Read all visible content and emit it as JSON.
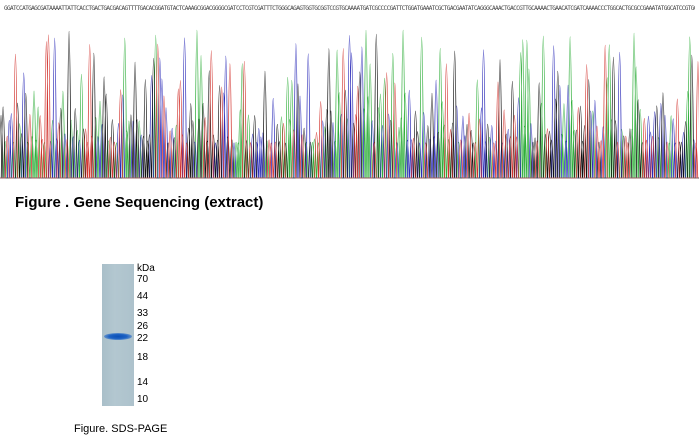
{
  "sequencing": {
    "sequence_text": "GGATCCATGAGCGATAAAATTATTCACCTGACTGACGACAGTTTTGACACGGATGTACTCAAAGCGGACGGGGCGATCCTCGTCGATTTCTGGGCAGAGTGGTGCGGTCCGTGCAAAATGATCGCCCCGATTCTGGATGAAATCGCTGACGAATATCAGGGCAAACTGACCGTTGCAAAACTGAACATCGATCAAAACCCTGGCACTGCGCCGAAATATGGCATCCGTGGTATCCCGACTCTGCTGCTGTTCAAAAACGGTGAAGTGGCGGCAACCAAAGTGGGTGCACTGTCTAAAGGTCAGTTGAAAGAGTTCCTCGACGCTAACCTGGCGAAGCTT",
    "caption": "Figure . Gene Sequencing (extract)",
    "colors": {
      "A": "#2fae3a",
      "C": "#2a2ab8",
      "G": "#111111",
      "T": "#d2322d"
    }
  },
  "sds_page": {
    "unit_label": "kDa",
    "markers": [
      "70",
      "44",
      "33",
      "26",
      "22",
      "18",
      "14",
      "10"
    ],
    "caption": "Figure. SDS-PAGE",
    "band_color": "#1a5fc4"
  }
}
